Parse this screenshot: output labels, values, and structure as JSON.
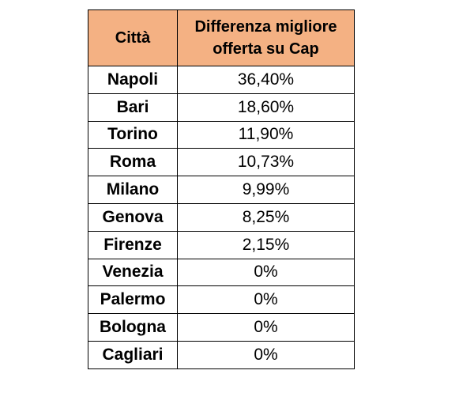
{
  "table": {
    "header_color": "#f4b183",
    "columns": [
      "Città",
      "Differenza migliore offerta su Cap"
    ],
    "rows": [
      {
        "city": "Napoli",
        "value": "36,40%"
      },
      {
        "city": "Bari",
        "value": "18,60%"
      },
      {
        "city": "Torino",
        "value": "11,90%"
      },
      {
        "city": "Roma",
        "value": "10,73%"
      },
      {
        "city": "Milano",
        "value": "9,99%"
      },
      {
        "city": "Genova",
        "value": "8,25%"
      },
      {
        "city": "Firenze",
        "value": "2,15%"
      },
      {
        "city": "Venezia",
        "value": "0%"
      },
      {
        "city": "Palermo",
        "value": "0%"
      },
      {
        "city": "Bologna",
        "value": "0%"
      },
      {
        "city": "Cagliari",
        "value": "0%"
      }
    ]
  }
}
